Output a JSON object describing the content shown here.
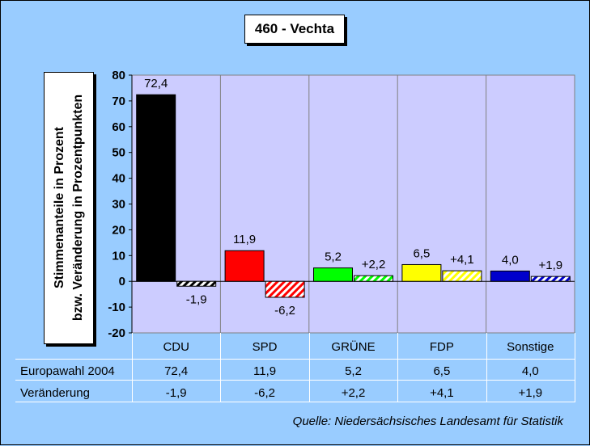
{
  "chart_data": {
    "type": "bar",
    "title": "460 - Vechta",
    "ylabel": [
      "Stimmenanteile in Prozent",
      "bzw. Veränderung in Prozentpunkten"
    ],
    "ylim": [
      -20,
      80
    ],
    "yticks": [
      "80",
      "70",
      "60",
      "50",
      "40",
      "30",
      "20",
      "10",
      "0",
      "-10",
      "-20"
    ],
    "yticks_values": [
      80,
      70,
      60,
      50,
      40,
      30,
      20,
      10,
      0,
      -10,
      -20
    ],
    "categories": [
      "CDU",
      "SPD",
      "GRÜNE",
      "FDP",
      "Sonstige"
    ],
    "colors": [
      "#000000",
      "#FF0000",
      "#00FF00",
      "#FFFF00",
      "#0000CC"
    ],
    "series": [
      {
        "name": "Europawahl 2004",
        "values": [
          72.4,
          11.9,
          5.2,
          6.5,
          4.0
        ],
        "labels": [
          "72,4",
          "11,9",
          "5,2",
          "6,5",
          "4,0"
        ],
        "fill": "solid"
      },
      {
        "name": "Veränderung",
        "values": [
          -1.9,
          -6.2,
          2.2,
          4.1,
          1.9
        ],
        "labels": [
          "-1,9",
          "-6,2",
          "+2,2",
          "+4,1",
          "+1,9"
        ],
        "fill": "hatched"
      }
    ],
    "grid": true,
    "plot_background": "#CCCCFF"
  },
  "source": "Quelle: Niedersächsisches Landesamt für Statistik"
}
